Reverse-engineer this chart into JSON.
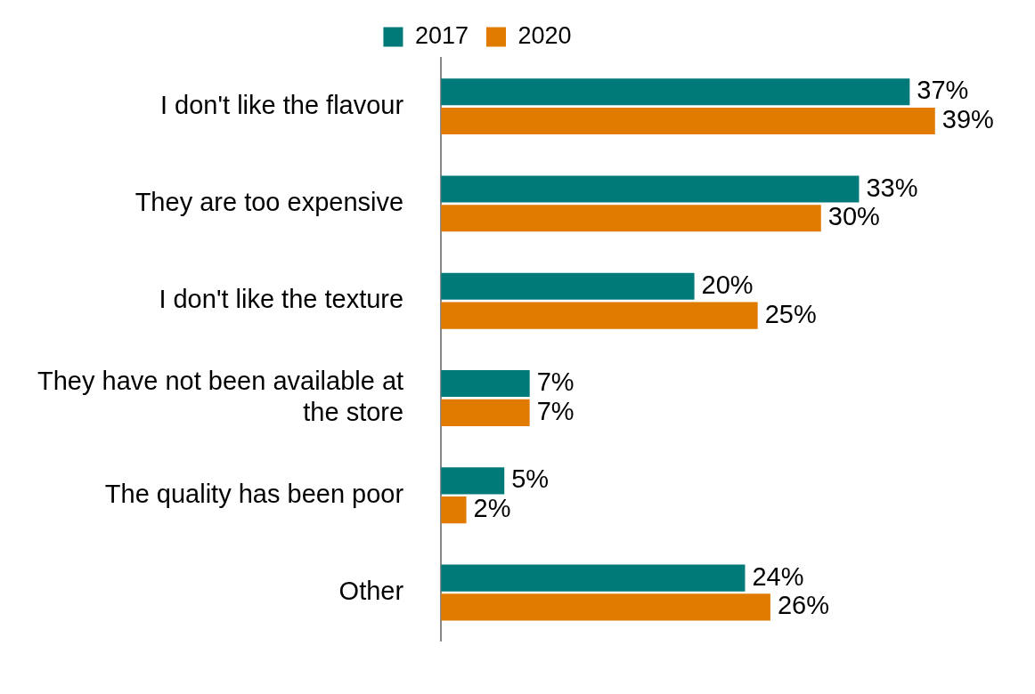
{
  "chart_data": {
    "type": "bar",
    "orientation": "horizontal",
    "categories": [
      "I don't like the flavour",
      "They are too expensive",
      "I don't like the texture",
      "They have not been available at the store",
      "The quality has been poor",
      "Other"
    ],
    "series": [
      {
        "name": "2017",
        "color": "#007a78",
        "values": [
          37,
          33,
          20,
          7,
          5,
          24
        ],
        "value_labels": [
          "37%",
          "33%",
          "20%",
          "7%",
          "5%",
          "24%"
        ]
      },
      {
        "name": "2020",
        "color": "#e07b00",
        "values": [
          39,
          30,
          25,
          7,
          2,
          26
        ],
        "value_labels": [
          "39%",
          "30%",
          "25%",
          "7%",
          "2%",
          "26%"
        ]
      }
    ],
    "legend": "top"
  }
}
